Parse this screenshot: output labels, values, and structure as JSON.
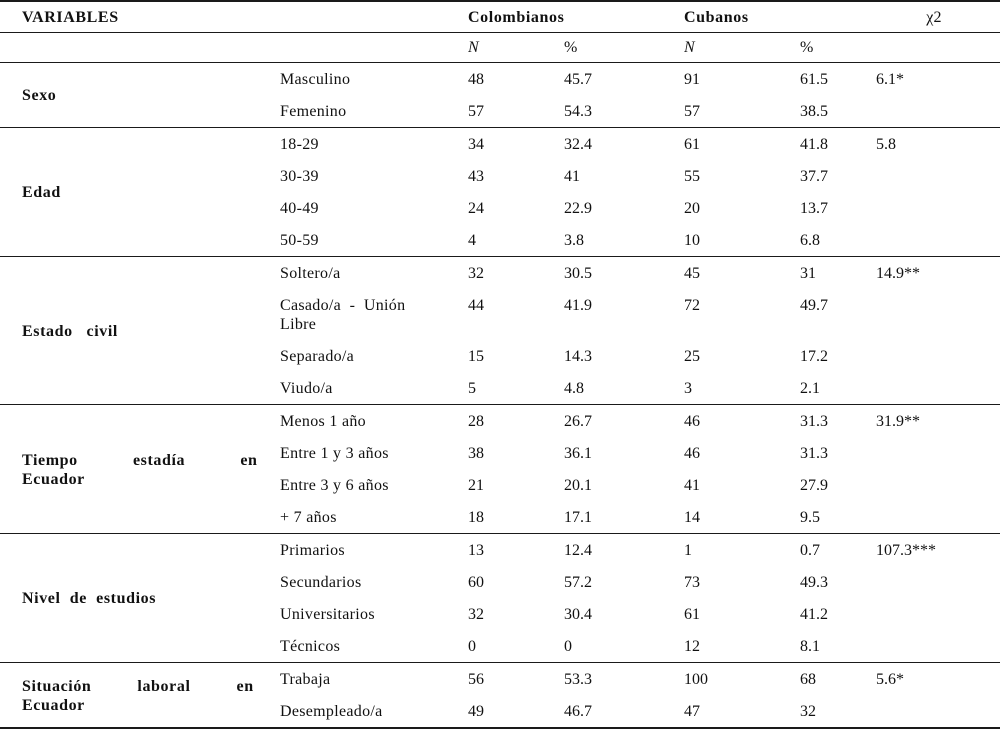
{
  "table": {
    "headers": {
      "variables": "VARIABLES",
      "colombianos": "Colombianos",
      "cubanos": "Cubanos",
      "chi": "χ2",
      "n": "N",
      "pct": "%"
    },
    "groups": [
      {
        "label": "Sexo",
        "rows": [
          {
            "category": "Masculino",
            "n1": "48",
            "p1": "45.7",
            "n2": "91",
            "p2": "61.5",
            "chi": "6.1*"
          },
          {
            "category": "Femenino",
            "n1": "57",
            "p1": "54.3",
            "n2": "57",
            "p2": "38.5",
            "chi": ""
          }
        ]
      },
      {
        "label": "Edad",
        "rows": [
          {
            "category": "18-29",
            "n1": "34",
            "p1": "32.4",
            "n2": "61",
            "p2": "41.8",
            "chi": "5.8"
          },
          {
            "category": "30-39",
            "n1": "43",
            "p1": "41",
            "n2": "55",
            "p2": "37.7",
            "chi": ""
          },
          {
            "category": "40-49",
            "n1": "24",
            "p1": "22.9",
            "n2": "20",
            "p2": "13.7",
            "chi": ""
          },
          {
            "category": "50-59",
            "n1": "4",
            "p1": "3.8",
            "n2": "10",
            "p2": "6.8",
            "chi": ""
          }
        ]
      },
      {
        "label": "Estado   civil",
        "rows": [
          {
            "category": "Soltero/a",
            "n1": "32",
            "p1": "30.5",
            "n2": "45",
            "p2": "31",
            "chi": "14.9**"
          },
          {
            "category": "Casado/a  -  Unión\nLibre",
            "n1": "44",
            "p1": "41.9",
            "n2": "72",
            "p2": "49.7",
            "chi": ""
          },
          {
            "category": "Separado/a",
            "n1": "15",
            "p1": "14.3",
            "n2": "25",
            "p2": "17.2",
            "chi": ""
          },
          {
            "category": "Viudo/a",
            "n1": "5",
            "p1": "4.8",
            "n2": "3",
            "p2": "2.1",
            "chi": ""
          }
        ]
      },
      {
        "label": "Tiempo            estadía            en\nEcuador",
        "rows": [
          {
            "category": "Menos 1 año",
            "n1": "28",
            "p1": "26.7",
            "n2": "46",
            "p2": "31.3",
            "chi": "31.9**"
          },
          {
            "category": "Entre 1 y 3 años",
            "n1": "38",
            "p1": "36.1",
            "n2": "46",
            "p2": "31.3",
            "chi": ""
          },
          {
            "category": "Entre 3 y 6 años",
            "n1": "21",
            "p1": "20.1",
            "n2": "41",
            "p2": "27.9",
            "chi": ""
          },
          {
            "category": "+ 7 años",
            "n1": "18",
            "p1": "17.1",
            "n2": "14",
            "p2": "9.5",
            "chi": ""
          }
        ]
      },
      {
        "label": "Nivel  de  estudios",
        "rows": [
          {
            "category": "Primarios",
            "n1": "13",
            "p1": "12.4",
            "n2": "1",
            "p2": "0.7",
            "chi": "107.3***"
          },
          {
            "category": "Secundarios",
            "n1": "60",
            "p1": "57.2",
            "n2": "73",
            "p2": "49.3",
            "chi": ""
          },
          {
            "category": "Universitarios",
            "n1": "32",
            "p1": "30.4",
            "n2": "61",
            "p2": "41.2",
            "chi": ""
          },
          {
            "category": "Técnicos",
            "n1": "0",
            "p1": "0",
            "n2": "12",
            "p2": "8.1",
            "chi": ""
          }
        ]
      },
      {
        "label": "Situación          laboral          en\nEcuador",
        "rows": [
          {
            "category": "Trabaja",
            "n1": "56",
            "p1": "53.3",
            "n2": "100",
            "p2": "68",
            "chi": "5.6*"
          },
          {
            "category": "Desempleado/a",
            "n1": "49",
            "p1": "46.7",
            "n2": "47",
            "p2": "32",
            "chi": ""
          }
        ]
      }
    ]
  }
}
